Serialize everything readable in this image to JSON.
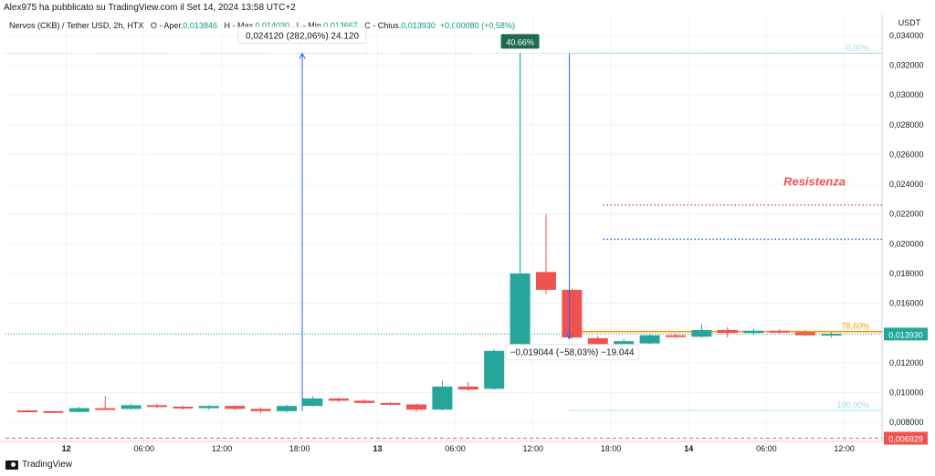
{
  "publisher_line": "Alex975 ha pubblicato su TradingView.com il Set 14, 2024 13:58 UTC+2",
  "legend": {
    "symbol": "Nervos (CKB) / Tether USD, 2h, HTX",
    "open_label": "O - Aper.",
    "open": "0,013846",
    "high_label": "H - Max.",
    "high": "0,014030",
    "low_label": "L - Min.",
    "low": "0,013667",
    "close_label": "C - Chius.",
    "close": "0,013930",
    "change": "+0,000080 (+0,58%)"
  },
  "colors": {
    "up": "#26a69a",
    "down": "#ef5350",
    "fib": "#b2ebf2",
    "resistance_text": "#ef5350",
    "red_line": "#ef5350",
    "blue_line": "#2962ff",
    "fib_orange": "#ff9800"
  },
  "chart_data": {
    "type": "candlestick",
    "currency": "USDT",
    "y_ticks": [
      "0,008000",
      "0,010000",
      "0,012000",
      "0,014000",
      "0,016000",
      "0,018000",
      "0,020000",
      "0,022000",
      "0,024000",
      "0,026000",
      "0,028000",
      "0,030000",
      "0,032000",
      "0,034000"
    ],
    "ylim": [
      0.00672,
      0.0354
    ],
    "x_ticks": [
      "12",
      "06:00",
      "12:00",
      "18:00",
      "13",
      "06:00",
      "12:00",
      "18:00",
      "14",
      "06:00",
      "12:00"
    ],
    "candles": [
      {
        "o": 0.0088,
        "h": 0.00885,
        "l": 0.0087,
        "c": 0.00875
      },
      {
        "o": 0.00875,
        "h": 0.00878,
        "l": 0.00868,
        "c": 0.00872
      },
      {
        "o": 0.0087,
        "h": 0.00905,
        "l": 0.00868,
        "c": 0.00895
      },
      {
        "o": 0.00895,
        "h": 0.00975,
        "l": 0.00885,
        "c": 0.0089
      },
      {
        "o": 0.0089,
        "h": 0.00925,
        "l": 0.00885,
        "c": 0.00915
      },
      {
        "o": 0.00915,
        "h": 0.00925,
        "l": 0.00895,
        "c": 0.00905
      },
      {
        "o": 0.00905,
        "h": 0.00912,
        "l": 0.00885,
        "c": 0.00895
      },
      {
        "o": 0.00895,
        "h": 0.00915,
        "l": 0.00885,
        "c": 0.0091
      },
      {
        "o": 0.0091,
        "h": 0.00915,
        "l": 0.0088,
        "c": 0.0089
      },
      {
        "o": 0.0089,
        "h": 0.009,
        "l": 0.0086,
        "c": 0.00875
      },
      {
        "o": 0.00875,
        "h": 0.0092,
        "l": 0.00865,
        "c": 0.0091
      },
      {
        "o": 0.0091,
        "h": 0.00975,
        "l": 0.00905,
        "c": 0.0096
      },
      {
        "o": 0.0096,
        "h": 0.00965,
        "l": 0.00935,
        "c": 0.00945
      },
      {
        "o": 0.00945,
        "h": 0.00955,
        "l": 0.00925,
        "c": 0.0093
      },
      {
        "o": 0.0093,
        "h": 0.00935,
        "l": 0.0091,
        "c": 0.0092
      },
      {
        "o": 0.0092,
        "h": 0.00925,
        "l": 0.0087,
        "c": 0.00885
      },
      {
        "o": 0.00885,
        "h": 0.0108,
        "l": 0.0088,
        "c": 0.0104
      },
      {
        "o": 0.0104,
        "h": 0.0107,
        "l": 0.0101,
        "c": 0.0102
      },
      {
        "o": 0.01025,
        "h": 0.0129,
        "l": 0.0102,
        "c": 0.0128
      },
      {
        "o": 0.0127,
        "h": 0.0328,
        "l": 0.0125,
        "c": 0.018
      },
      {
        "o": 0.0181,
        "h": 0.022,
        "l": 0.0166,
        "c": 0.0169
      },
      {
        "o": 0.0169,
        "h": 0.01695,
        "l": 0.0136,
        "c": 0.0137
      },
      {
        "o": 0.01365,
        "h": 0.0138,
        "l": 0.0125,
        "c": 0.0132
      },
      {
        "o": 0.0132,
        "h": 0.0136,
        "l": 0.0131,
        "c": 0.01345
      },
      {
        "o": 0.0133,
        "h": 0.01395,
        "l": 0.01325,
        "c": 0.01385
      },
      {
        "o": 0.01385,
        "h": 0.01395,
        "l": 0.01365,
        "c": 0.01375
      },
      {
        "o": 0.01375,
        "h": 0.0146,
        "l": 0.0137,
        "c": 0.0142
      },
      {
        "o": 0.0142,
        "h": 0.0144,
        "l": 0.0137,
        "c": 0.014
      },
      {
        "o": 0.014,
        "h": 0.0143,
        "l": 0.01385,
        "c": 0.01415
      },
      {
        "o": 0.01415,
        "h": 0.01425,
        "l": 0.01395,
        "c": 0.01405
      },
      {
        "o": 0.01405,
        "h": 0.0142,
        "l": 0.0138,
        "c": 0.01385
      },
      {
        "o": 0.0139,
        "h": 0.01405,
        "l": 0.0137,
        "c": 0.01395
      }
    ],
    "current_price_label": "0,013930",
    "low_price_label": "0,006929",
    "measure_up_label": "0,024120 (282,06%) 24.120",
    "measure_down_label": "−0,019044 (−58,03%) −19.044",
    "top_badge": "40.66%",
    "resistance_label": "Resistenza",
    "fib_levels": [
      {
        "label": "0,00%",
        "price": 0.0328
      },
      {
        "label": "78,60%",
        "price": 0.0141
      },
      {
        "label": "100,00%",
        "price": 0.0088
      }
    ],
    "resistance_red": 0.0226,
    "resistance_blue": 0.0203,
    "dashed_low": 0.00693
  },
  "footer": {
    "brand": "TradingView"
  }
}
